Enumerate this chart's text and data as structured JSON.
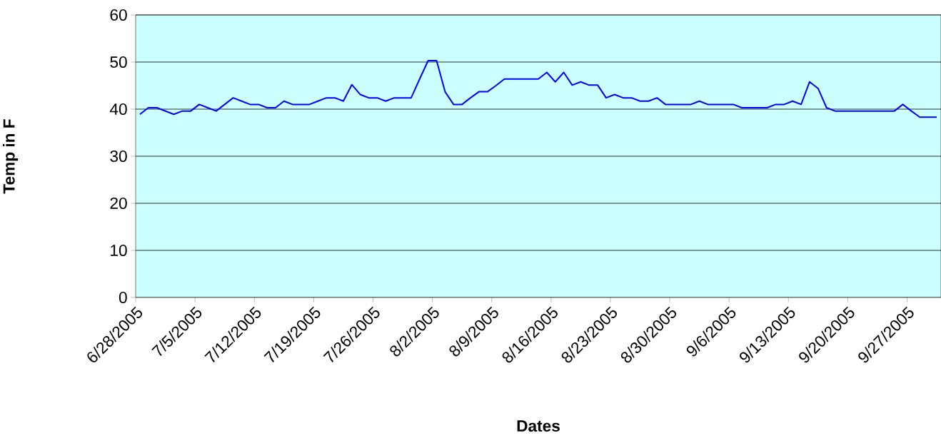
{
  "chart_data": {
    "type": "line",
    "xlabel": "Dates",
    "ylabel": "Temp in F",
    "x": [
      "2005-06-28T12:00",
      "2005-06-29T12:00",
      "2005-06-30T12:00",
      "2005-07-01T12:00",
      "2005-07-02T12:00",
      "2005-07-03T12:00",
      "2005-07-04T12:00",
      "2005-07-05T12:00",
      "2005-07-06T12:00",
      "2005-07-07T12:00",
      "2005-07-08T12:00",
      "2005-07-09T12:00",
      "2005-07-10T12:00",
      "2005-07-11T12:00",
      "2005-07-12T12:00",
      "2005-07-13T12:00",
      "2005-07-14T12:00",
      "2005-07-15T12:00",
      "2005-07-16T12:00",
      "2005-07-17T12:00",
      "2005-07-18T12:00",
      "2005-07-19T12:00",
      "2005-07-20T12:00",
      "2005-07-21T12:00",
      "2005-07-22T12:00",
      "2005-07-23T12:00",
      "2005-07-24T12:00",
      "2005-07-25T12:00",
      "2005-07-26T12:00",
      "2005-07-27T12:00",
      "2005-07-28T12:00",
      "2005-07-29T12:00",
      "2005-07-30T12:00",
      "2005-07-31T12:00",
      "2005-08-01T12:00",
      "2005-08-02T12:00",
      "2005-08-03T12:00",
      "2005-08-04T12:00",
      "2005-08-05T12:00",
      "2005-08-06T12:00",
      "2005-08-07T12:00",
      "2005-08-08T12:00",
      "2005-08-09T12:00",
      "2005-08-10T12:00",
      "2005-08-11T12:00",
      "2005-08-12T12:00",
      "2005-08-13T12:00",
      "2005-08-14T12:00",
      "2005-08-15T12:00",
      "2005-08-16T12:00",
      "2005-08-17T12:00",
      "2005-08-18T12:00",
      "2005-08-19T12:00",
      "2005-08-20T12:00",
      "2005-08-21T12:00",
      "2005-08-22T12:00",
      "2005-08-23T12:00",
      "2005-08-24T12:00",
      "2005-08-25T12:00",
      "2005-08-26T12:00",
      "2005-08-27T12:00",
      "2005-08-28T12:00",
      "2005-08-29T12:00",
      "2005-08-30T12:00",
      "2005-08-31T12:00",
      "2005-09-01T12:00",
      "2005-09-02T12:00",
      "2005-09-03T12:00",
      "2005-09-04T12:00",
      "2005-09-05T12:00",
      "2005-09-06T12:00",
      "2005-09-07T12:00",
      "2005-09-08T12:00",
      "2005-09-09T12:00",
      "2005-09-10T12:00",
      "2005-09-11T12:00",
      "2005-09-12T12:00",
      "2005-09-13T12:00",
      "2005-09-14T12:00",
      "2005-09-15T12:00",
      "2005-09-16T12:00",
      "2005-09-17T12:00",
      "2005-09-18T12:00",
      "2005-09-19T12:00",
      "2005-09-20T12:00",
      "2005-09-21T12:00",
      "2005-09-22T12:00",
      "2005-09-23T12:00",
      "2005-09-24T12:00",
      "2005-09-25T12:00",
      "2005-09-26T12:00",
      "2005-09-27T12:00",
      "2005-09-28T12:00",
      "2005-09-29T12:00",
      "2005-09-30T12:00"
    ],
    "series": [
      {
        "color": "#0000ff",
        "values": [
          38.9,
          40.3,
          40.3,
          39.6,
          38.9,
          39.6,
          39.6,
          41.0,
          40.3,
          39.6,
          41.0,
          42.4,
          41.7,
          41.0,
          41.0,
          40.3,
          40.3,
          41.7,
          41.0,
          41.0,
          41.0,
          41.7,
          42.4,
          42.4,
          41.7,
          45.2,
          43.1,
          42.4,
          42.4,
          41.7,
          42.4,
          42.4,
          42.4,
          46.4,
          50.3,
          50.3,
          43.7,
          41.0,
          41.0,
          42.4,
          43.7,
          43.7,
          45.0,
          46.4,
          46.4,
          46.4,
          46.4,
          46.4,
          47.8,
          45.8,
          47.8,
          45.1,
          45.8,
          45.1,
          45.1,
          42.4,
          43.1,
          42.4,
          42.4,
          41.7,
          41.7,
          42.4,
          41.0,
          41.0,
          41.0,
          41.0,
          41.7,
          41.0,
          41.0,
          41.0,
          41.0,
          40.3,
          40.3,
          40.3,
          40.3,
          41.0,
          41.0,
          41.7,
          41.0,
          45.8,
          44.4,
          40.3,
          39.6,
          39.6,
          39.6,
          39.6,
          39.6,
          39.6,
          39.6,
          39.6,
          41.0,
          39.6,
          38.3,
          38.3,
          38.3
        ]
      }
    ],
    "xlim": [
      "2005-06-28",
      "2005-10-01"
    ],
    "xticks": [
      {
        "value": "2005-06-28",
        "label": "6/28/2005"
      },
      {
        "value": "2005-07-05",
        "label": "7/5/2005"
      },
      {
        "value": "2005-07-12",
        "label": "7/12/2005"
      },
      {
        "value": "2005-07-19",
        "label": "7/19/2005"
      },
      {
        "value": "2005-07-26",
        "label": "7/26/2005"
      },
      {
        "value": "2005-08-02",
        "label": "8/2/2005"
      },
      {
        "value": "2005-08-09",
        "label": "8/9/2005"
      },
      {
        "value": "2005-08-16",
        "label": "8/16/2005"
      },
      {
        "value": "2005-08-23",
        "label": "8/23/2005"
      },
      {
        "value": "2005-08-30",
        "label": "8/30/2005"
      },
      {
        "value": "2005-09-06",
        "label": "9/6/2005"
      },
      {
        "value": "2005-09-13",
        "label": "9/13/2005"
      },
      {
        "value": "2005-09-20",
        "label": "9/20/2005"
      },
      {
        "value": "2005-09-27",
        "label": "9/27/2005"
      }
    ],
    "ylim": [
      0,
      60
    ],
    "yticks": [
      0,
      10,
      20,
      30,
      40,
      50,
      60
    ],
    "grid": "y",
    "marker": "none",
    "line_style": "solid"
  }
}
